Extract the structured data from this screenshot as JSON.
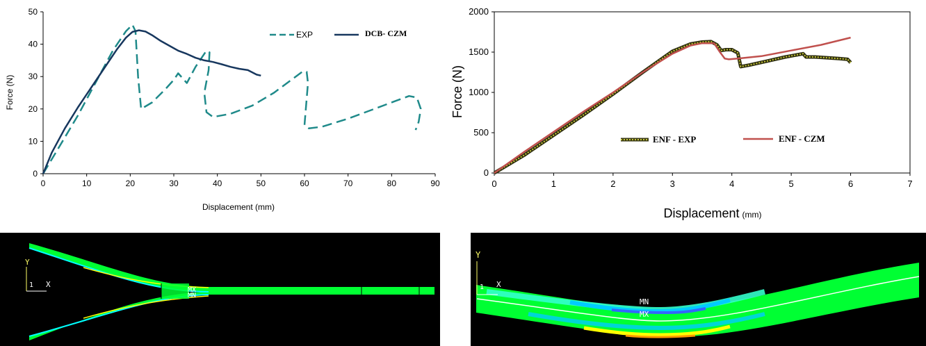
{
  "chart_data": [
    {
      "type": "line",
      "xlabel": "Displacement (mm)",
      "ylabel": "Force (N)",
      "xlim": [
        0,
        90
      ],
      "ylim": [
        0,
        50
      ],
      "xticks": [
        "0",
        "10",
        "20",
        "30",
        "40",
        "50",
        "60",
        "70",
        "80",
        "90"
      ],
      "yticks": [
        "0",
        "10",
        "20",
        "30",
        "40",
        "50"
      ],
      "grid": false,
      "legend_position": "top-right",
      "series": [
        {
          "name": "EXP",
          "color": "#1f8a8a",
          "style": "dashed",
          "x": [
            0,
            4,
            8,
            12,
            16,
            19,
            20.5,
            21.2,
            21.8,
            22.5,
            25,
            28,
            30,
            31,
            33,
            35,
            36.5,
            37.5,
            38.2,
            38,
            37,
            37.5,
            39,
            43,
            48,
            53,
            57,
            59.5,
            60.5,
            60.8,
            60.3,
            60,
            61,
            64,
            70,
            76,
            81,
            84,
            85.8,
            86.7,
            86.2,
            85.5
          ],
          "y": [
            0,
            9,
            18,
            28,
            38,
            44,
            46,
            44,
            30,
            20,
            22,
            26,
            29,
            31,
            28,
            33,
            36,
            38,
            37.5,
            32,
            25,
            19,
            17.5,
            18.5,
            21,
            25,
            29,
            31.5,
            31.5,
            28,
            20,
            15,
            14,
            14.5,
            17,
            20,
            22.5,
            24,
            23.5,
            20,
            16,
            13.5
          ]
        },
        {
          "name": "DCB- CZM",
          "color": "#17375e",
          "style": "solid",
          "x": [
            0,
            2,
            5,
            8,
            11,
            14,
            17,
            19,
            20.5,
            22,
            23.5,
            25,
            27,
            29,
            31,
            33,
            35,
            37,
            39,
            41,
            43,
            45,
            47,
            49,
            50
          ],
          "y": [
            0,
            6.5,
            14,
            20.5,
            26.5,
            32.5,
            38.5,
            42,
            43.8,
            44.3,
            43.9,
            42.8,
            41,
            39.5,
            38,
            37,
            35.8,
            35,
            34.5,
            33.8,
            33,
            32.4,
            32,
            30.6,
            30.3
          ]
        }
      ]
    },
    {
      "type": "line",
      "xlabel": "Displacement",
      "xlabel_unit": "(mm)",
      "ylabel": "Force (N)",
      "xlim": [
        0,
        7
      ],
      "ylim": [
        0,
        2000
      ],
      "xticks": [
        "0",
        "1",
        "2",
        "3",
        "4",
        "5",
        "6",
        "7"
      ],
      "yticks": [
        "0",
        "500",
        "1000",
        "1500",
        "2000"
      ],
      "grid": false,
      "legend_position": "center",
      "series": [
        {
          "name": "ENF - EXP",
          "color": "#2d2d0f",
          "marker_color": "#c8c83a",
          "style": "markers",
          "x": [
            0,
            0.5,
            1,
            1.5,
            2,
            2.5,
            3,
            3.3,
            3.5,
            3.65,
            3.75,
            3.82,
            3.9,
            4.0,
            4.1,
            4.15,
            4.3,
            4.6,
            4.9,
            5.2,
            5.25,
            5.4,
            5.6,
            5.8,
            5.95,
            6.0
          ],
          "y": [
            0,
            220,
            470,
            720,
            980,
            1250,
            1510,
            1600,
            1625,
            1630,
            1590,
            1520,
            1530,
            1530,
            1490,
            1320,
            1340,
            1390,
            1440,
            1480,
            1440,
            1440,
            1430,
            1420,
            1410,
            1370
          ]
        },
        {
          "name": "ENF - CZM",
          "color": "#c0504d",
          "style": "solid",
          "x": [
            0,
            0.5,
            1,
            1.5,
            2,
            2.5,
            3,
            3.3,
            3.5,
            3.7,
            3.8,
            3.88,
            3.95,
            4.1,
            4.5,
            5,
            5.5,
            6.0
          ],
          "y": [
            0,
            260,
            510,
            760,
            1000,
            1250,
            1480,
            1580,
            1610,
            1610,
            1500,
            1420,
            1410,
            1420,
            1450,
            1520,
            1590,
            1680
          ]
        }
      ]
    }
  ],
  "fem_images": {
    "left": {
      "axis_y": "Y",
      "axis_x": "X",
      "origin": "1",
      "mx": "MX",
      "mn": "MN",
      "colors": [
        "#00ff33",
        "#ffff00",
        "#00ffff",
        "#0066ff",
        "#ff9900"
      ]
    },
    "right": {
      "axis_y": "Y",
      "axis_x": "X",
      "origin": "1",
      "mn": "MN",
      "mx": "MX",
      "colors": [
        "#00ff33",
        "#33ffcc",
        "#00ccff",
        "#3366ff",
        "#ffff00",
        "#ff9900"
      ]
    }
  }
}
